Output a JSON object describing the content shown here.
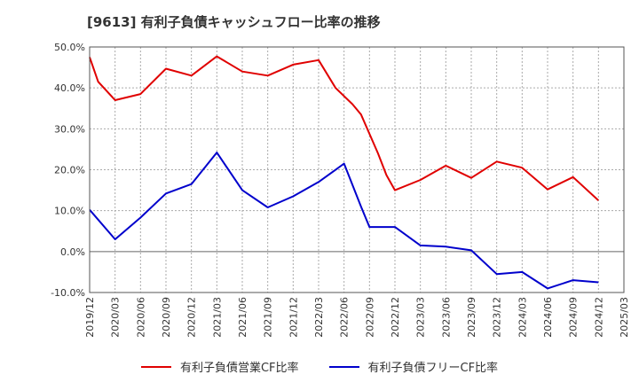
{
  "title": "[9613]  有利子負債キャッシュフロー比率の推移",
  "chart_data": {
    "type": "line",
    "title": "[9613]  有利子負債キャッシュフロー比率の推移",
    "xlabel": "",
    "ylabel": "",
    "ylim": [
      -10,
      50
    ],
    "yticks": [
      "50.0%",
      "40.0%",
      "30.0%",
      "20.0%",
      "10.0%",
      "0.0%",
      "-10.0%"
    ],
    "ytick_values": [
      50,
      40,
      30,
      20,
      10,
      0,
      -10
    ],
    "xticks": [
      "2019/12",
      "2020/03",
      "2020/06",
      "2020/09",
      "2020/12",
      "2021/03",
      "2021/06",
      "2021/09",
      "2021/12",
      "2022/03",
      "2022/06",
      "2022/09",
      "2022/12",
      "2023/03",
      "2023/06",
      "2023/09",
      "2023/12",
      "2024/03",
      "2024/06",
      "2024/09",
      "2024/12",
      "2025/03"
    ],
    "grid": true,
    "legend_position": "bottom",
    "series": [
      {
        "name": "有利子負債営業CF比率",
        "color": "#e00000",
        "points": [
          [
            "2019/12",
            47.5
          ],
          [
            "2020/01",
            41.5
          ],
          [
            "2020/03",
            37.0
          ],
          [
            "2020/06",
            38.5
          ],
          [
            "2020/09",
            44.7
          ],
          [
            "2020/12",
            43.0
          ],
          [
            "2021/03",
            47.7
          ],
          [
            "2021/06",
            44.0
          ],
          [
            "2021/09",
            43.0
          ],
          [
            "2021/12",
            45.7
          ],
          [
            "2022/03",
            46.8
          ],
          [
            "2022/05",
            40.0
          ],
          [
            "2022/07",
            36.0
          ],
          [
            "2022/08",
            33.5
          ],
          [
            "2022/10",
            24.0
          ],
          [
            "2022/11",
            18.7
          ],
          [
            "2022/12",
            15.0
          ],
          [
            "2023/03",
            17.5
          ],
          [
            "2023/06",
            21.0
          ],
          [
            "2023/09",
            18.0
          ],
          [
            "2023/12",
            22.0
          ],
          [
            "2024/03",
            20.5
          ],
          [
            "2024/06",
            15.2
          ],
          [
            "2024/09",
            18.2
          ],
          [
            "2024/12",
            12.5
          ]
        ]
      },
      {
        "name": "有利子負債フリーCF比率",
        "color": "#0000cc",
        "points": [
          [
            "2019/12",
            10.2
          ],
          [
            "2020/03",
            3.0
          ],
          [
            "2020/06",
            8.3
          ],
          [
            "2020/09",
            14.2
          ],
          [
            "2020/12",
            16.5
          ],
          [
            "2021/03",
            24.2
          ],
          [
            "2021/06",
            15.0
          ],
          [
            "2021/09",
            10.8
          ],
          [
            "2021/12",
            13.5
          ],
          [
            "2022/03",
            17.0
          ],
          [
            "2022/06",
            21.5
          ],
          [
            "2022/08",
            11.0
          ],
          [
            "2022/09",
            6.0
          ],
          [
            "2022/12",
            6.0
          ],
          [
            "2023/03",
            1.5
          ],
          [
            "2023/06",
            1.2
          ],
          [
            "2023/09",
            0.3
          ],
          [
            "2023/12",
            -5.5
          ],
          [
            "2024/03",
            -5.0
          ],
          [
            "2024/06",
            -9.0
          ],
          [
            "2024/09",
            -7.0
          ],
          [
            "2024/12",
            -7.5
          ]
        ]
      }
    ]
  }
}
